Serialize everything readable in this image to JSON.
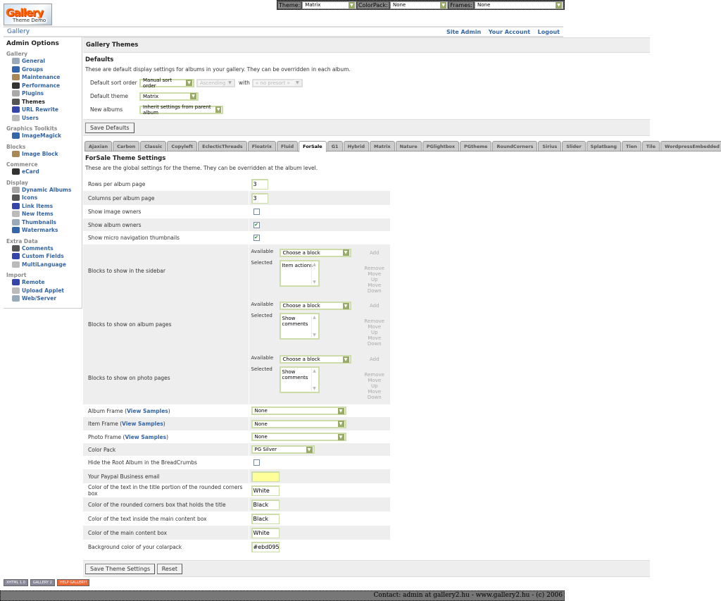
{
  "logo": {
    "text": "Gallery",
    "sub": "Theme Demo"
  },
  "topbar": {
    "theme_label": "Theme:",
    "theme_value": "Matrix",
    "colorpack_label": "ColorPack:",
    "colorpack_value": "None",
    "frames_label": "Frames:",
    "frames_value": "None"
  },
  "header": {
    "breadcrumb": "Gallery",
    "links": [
      "Site Admin",
      "Your Account",
      "Logout"
    ]
  },
  "sidebar": {
    "title": "Admin Options",
    "groups": [
      {
        "label": "Gallery",
        "items": [
          "General",
          "Groups",
          "Maintenance",
          "Performance",
          "Plugins",
          "Themes",
          "URL Rewrite",
          "Users"
        ]
      },
      {
        "label": "Graphics Toolkits",
        "items": [
          "ImageMagick"
        ]
      },
      {
        "label": "Blocks",
        "items": [
          "Image Block"
        ]
      },
      {
        "label": "Commerce",
        "items": [
          "eCard"
        ]
      },
      {
        "label": "Display",
        "items": [
          "Dynamic Albums",
          "Icons",
          "Link Items",
          "New Items",
          "Thumbnails",
          "Watermarks"
        ]
      },
      {
        "label": "Extra Data",
        "items": [
          "Comments",
          "Custom Fields",
          "MultiLanguage"
        ]
      },
      {
        "label": "Import",
        "items": [
          "Remote",
          "Upload Applet",
          "Web/Server"
        ]
      }
    ],
    "current": "Themes"
  },
  "main": {
    "title": "Gallery Themes",
    "defaults": {
      "heading": "Defaults",
      "description": "These are default display settings for albums in your gallery. They can be overridden in each album.",
      "sort_label": "Default sort order",
      "sort_value": "Manual sort order",
      "direction_value": "Ascending",
      "with_label": "with",
      "presort_value": "« no presort »",
      "theme_label": "Default theme",
      "theme_value": "Matrix",
      "new_label": "New albums",
      "new_value": "Inherit settings from parent album",
      "save": "Save Defaults"
    },
    "tabs": [
      "Ajaxian",
      "Carbon",
      "Classic",
      "Copyleft",
      "EclecticThreads",
      "Floatrix",
      "Fluid",
      "ForSale",
      "G1",
      "Hybrid",
      "Matrix",
      "Nature",
      "PGlightbox",
      "PGtheme",
      "RoundCorners",
      "Sirius",
      "Slider",
      "Splatbang",
      "Tien",
      "Tile",
      "WordpressEmbedded"
    ],
    "active_tab": "ForSale",
    "settings": {
      "heading": "ForSale Theme Settings",
      "description": "These are the global settings for the theme. They can be overridden at the album level.",
      "rows_label": "Rows per album page",
      "rows_value": "3",
      "cols_label": "Columns per album page",
      "cols_value": "3",
      "owners_label": "Show image owners",
      "owners_checked": false,
      "album_owners_label": "Show album owners",
      "album_owners_checked": true,
      "micro_label": "Show micro navigation thumbnails",
      "micro_checked": true,
      "available_label": "Available",
      "selected_label": "Selected",
      "choose": "Choose a block",
      "add": "Add",
      "remove": "Remove",
      "move_up": "Move Up",
      "move_down": "Move Down",
      "blocks": [
        {
          "label": "Blocks to show in the sidebar",
          "selected": "Item actions"
        },
        {
          "label": "Blocks to show on album pages",
          "selected": "Show comments"
        },
        {
          "label": "Blocks to show on photo pages",
          "selected": "Show comments"
        }
      ],
      "view_samples": "View Samples",
      "album_frame_label": "Album Frame",
      "album_frame_value": "None",
      "item_frame_label": "Item Frame",
      "item_frame_value": "None",
      "photo_frame_label": "Photo Frame",
      "photo_frame_value": "None",
      "colorpack_label": "Color Pack",
      "colorpack_value": "PG Silver",
      "hide_root_label": "Hide the Root Album in the BreadCrumbs",
      "hide_root_checked": false,
      "paypal_label": "Your Paypal Business email",
      "paypal_value": "",
      "c1_label": "Color of the text in the title portion of the rounded corners box",
      "c1_value": "White",
      "c2_label": "Color of the rounded corners box that holds the title",
      "c2_value": "Black",
      "c3_label": "Color of the text inside the main content box",
      "c3_value": "Black",
      "c4_label": "Color of the main content box",
      "c4_value": "White",
      "c5_label": "Background color of your colarpack",
      "c5_value": "#ebd095",
      "save": "Save Theme Settings",
      "reset": "Reset"
    }
  },
  "badges": [
    "XHTML 1.0",
    "GALLERY 2",
    "HELP GALLERY!"
  ],
  "footer": "Contact: admin at gallery2.hu - www.gallery2.hu - (c) 2006",
  "colors": {
    "link": "#3465a4",
    "input_border": "#ccddaa",
    "paypal_bg": "#ffff99"
  }
}
